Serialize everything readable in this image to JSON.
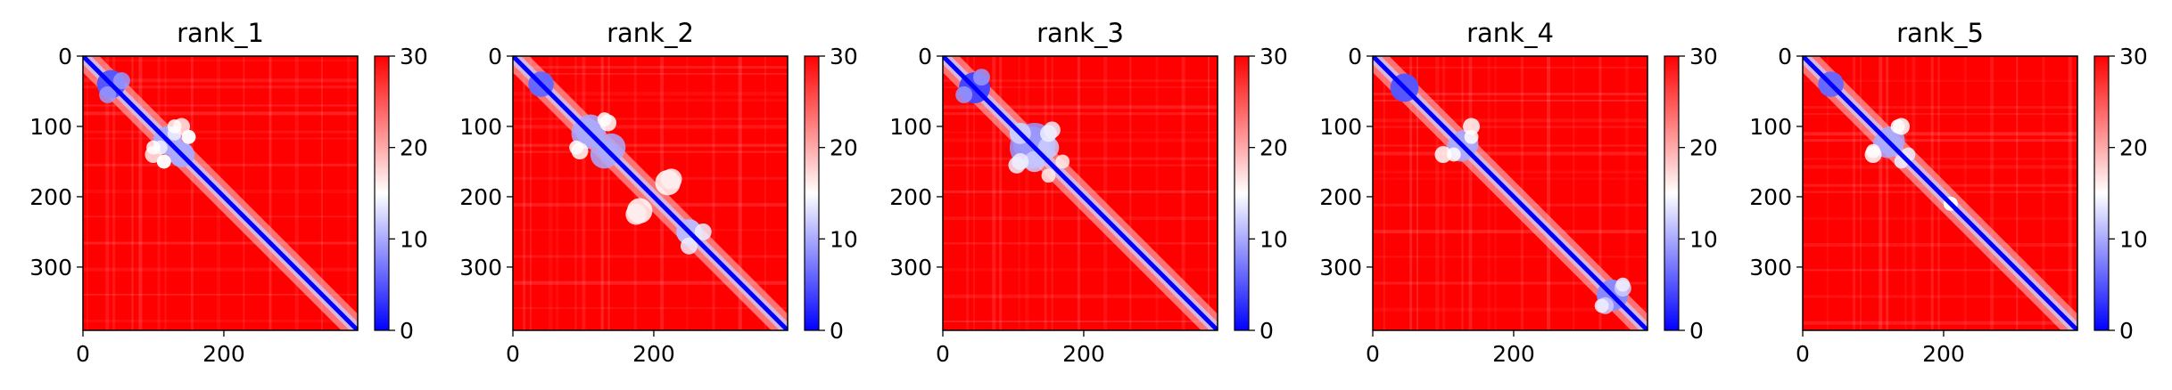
{
  "chart_data": [
    {
      "type": "heatmap",
      "title": "rank_1",
      "x_ticks": [
        0,
        200
      ],
      "y_ticks": [
        0,
        100,
        200,
        300
      ],
      "xlim": [
        0,
        390
      ],
      "ylim": [
        390,
        0
      ],
      "colorbar": {
        "ticks": [
          0,
          10,
          20,
          30
        ],
        "range": [
          0,
          30
        ],
        "colormap": "bwr"
      },
      "blobs": [
        {
          "center": [
            40,
            40
          ],
          "radius": 20,
          "value": 5
        },
        {
          "center": [
            55,
            35
          ],
          "radius": 12,
          "value": 9
        },
        {
          "center": [
            120,
            120
          ],
          "radius": 20,
          "value": 10
        },
        {
          "center": [
            140,
            140
          ],
          "radius": 18,
          "value": 10
        },
        {
          "center": [
            130,
            110
          ],
          "radius": 10,
          "value": 14
        },
        {
          "center": [
            140,
            100
          ],
          "radius": 12,
          "value": 16
        },
        {
          "center": [
            150,
            115
          ],
          "radius": 10,
          "value": 14
        },
        {
          "center": [
            100,
            130
          ],
          "radius": 10,
          "value": 15
        },
        {
          "center": [
            115,
            150
          ],
          "radius": 10,
          "value": 15
        }
      ]
    },
    {
      "type": "heatmap",
      "title": "rank_2",
      "x_ticks": [
        0,
        200
      ],
      "y_ticks": [
        0,
        100,
        200,
        300
      ],
      "xlim": [
        0,
        390
      ],
      "ylim": [
        390,
        0
      ],
      "colorbar": {
        "ticks": [
          0,
          10,
          20,
          30
        ],
        "range": [
          0,
          30
        ],
        "colormap": "bwr"
      },
      "blobs": [
        {
          "center": [
            40,
            40
          ],
          "radius": 18,
          "value": 6
        },
        {
          "center": [
            110,
            105
          ],
          "radius": 22,
          "value": 10
        },
        {
          "center": [
            140,
            130
          ],
          "radius": 20,
          "value": 10
        },
        {
          "center": [
            135,
            95
          ],
          "radius": 12,
          "value": 15
        },
        {
          "center": [
            90,
            130
          ],
          "radius": 10,
          "value": 15
        },
        {
          "center": [
            220,
            180
          ],
          "radius": 18,
          "value": 15
        },
        {
          "center": [
            175,
            225
          ],
          "radius": 15,
          "value": 16
        },
        {
          "center": [
            250,
            250
          ],
          "radius": 18,
          "value": 11
        },
        {
          "center": [
            250,
            270
          ],
          "radius": 12,
          "value": 14
        }
      ]
    },
    {
      "type": "heatmap",
      "title": "rank_3",
      "x_ticks": [
        0,
        200
      ],
      "y_ticks": [
        0,
        100,
        200,
        300
      ],
      "xlim": [
        0,
        390
      ],
      "ylim": [
        390,
        0
      ],
      "colorbar": {
        "ticks": [
          0,
          10,
          20,
          30
        ],
        "range": [
          0,
          30
        ],
        "colormap": "bwr"
      },
      "blobs": [
        {
          "center": [
            45,
            45
          ],
          "radius": 22,
          "value": 4
        },
        {
          "center": [
            30,
            55
          ],
          "radius": 12,
          "value": 9
        },
        {
          "center": [
            130,
            125
          ],
          "radius": 30,
          "value": 9
        },
        {
          "center": [
            110,
            110
          ],
          "radius": 15,
          "value": 12
        },
        {
          "center": [
            150,
            130
          ],
          "radius": 15,
          "value": 12
        },
        {
          "center": [
            110,
            150
          ],
          "radius": 12,
          "value": 14
        },
        {
          "center": [
            155,
            105
          ],
          "radius": 12,
          "value": 14
        },
        {
          "center": [
            170,
            150
          ],
          "radius": 10,
          "value": 16
        }
      ]
    },
    {
      "type": "heatmap",
      "title": "rank_4",
      "x_ticks": [
        0,
        200
      ],
      "y_ticks": [
        0,
        100,
        200,
        300
      ],
      "xlim": [
        0,
        390
      ],
      "ylim": [
        390,
        0
      ],
      "colorbar": {
        "ticks": [
          0,
          10,
          20,
          30
        ],
        "range": [
          0,
          30
        ],
        "colormap": "bwr"
      },
      "blobs": [
        {
          "center": [
            45,
            45
          ],
          "radius": 20,
          "value": 5
        },
        {
          "center": [
            130,
            125
          ],
          "radius": 20,
          "value": 10
        },
        {
          "center": [
            140,
            100
          ],
          "radius": 12,
          "value": 15
        },
        {
          "center": [
            115,
            140
          ],
          "radius": 10,
          "value": 15
        },
        {
          "center": [
            340,
            340
          ],
          "radius": 22,
          "value": 8
        },
        {
          "center": [
            330,
            355
          ],
          "radius": 12,
          "value": 12
        },
        {
          "center": [
            355,
            325
          ],
          "radius": 10,
          "value": 14
        }
      ]
    },
    {
      "type": "heatmap",
      "title": "rank_5",
      "x_ticks": [
        0,
        200
      ],
      "y_ticks": [
        0,
        100,
        200,
        300
      ],
      "xlim": [
        0,
        390
      ],
      "ylim": [
        390,
        0
      ],
      "colorbar": {
        "ticks": [
          0,
          10,
          20,
          30
        ],
        "range": [
          0,
          30
        ],
        "colormap": "bwr"
      },
      "blobs": [
        {
          "center": [
            40,
            40
          ],
          "radius": 18,
          "value": 6
        },
        {
          "center": [
            125,
            120
          ],
          "radius": 20,
          "value": 10
        },
        {
          "center": [
            140,
            100
          ],
          "radius": 12,
          "value": 15
        },
        {
          "center": [
            100,
            135
          ],
          "radius": 10,
          "value": 15
        },
        {
          "center": [
            150,
            140
          ],
          "radius": 10,
          "value": 14
        },
        {
          "center": [
            210,
            210
          ],
          "radius": 10,
          "value": 15
        }
      ]
    }
  ]
}
